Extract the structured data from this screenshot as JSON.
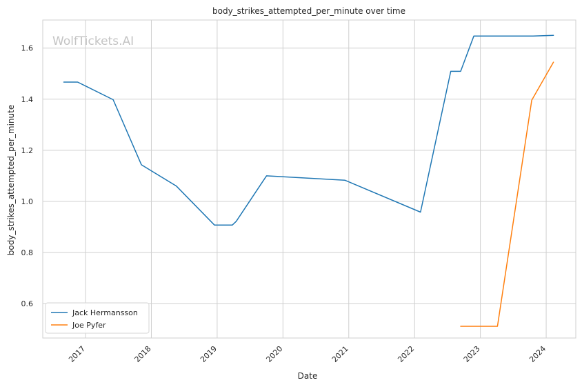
{
  "chart_data": {
    "type": "line",
    "title": "body_strikes_attempted_per_minute over time",
    "xlabel": "Date",
    "ylabel": "body_strikes_attempted_per_minute",
    "watermark": "WolfTickets.AI",
    "xlim": [
      2016.35,
      2024.45
    ],
    "ylim": [
      0.465,
      1.71
    ],
    "x_ticks": [
      2017,
      2018,
      2019,
      2020,
      2021,
      2022,
      2023,
      2024
    ],
    "x_tick_labels": [
      "2017",
      "2018",
      "2019",
      "2020",
      "2021",
      "2022",
      "2023",
      "2024"
    ],
    "y_ticks": [
      0.6,
      0.8,
      1.0,
      1.2,
      1.4,
      1.6
    ],
    "y_tick_labels": [
      "0.6",
      "0.8",
      "1.0",
      "1.2",
      "1.4",
      "1.6"
    ],
    "grid": true,
    "legend_position": "bottom-left",
    "series": [
      {
        "name": "Jack Hermansson",
        "color": "#1f77b4",
        "x": [
          2016.67,
          2016.88,
          2017.42,
          2017.85,
          2018.38,
          2018.96,
          2019.23,
          2019.29,
          2019.75,
          2020.94,
          2022.09,
          2022.55,
          2022.7,
          2022.9,
          2023.8,
          2024.11
        ],
        "y": [
          1.467,
          1.467,
          1.398,
          1.143,
          1.06,
          0.907,
          0.907,
          0.922,
          1.1,
          1.083,
          0.958,
          1.509,
          1.509,
          1.647,
          1.647,
          1.65
        ]
      },
      {
        "name": "Joe Pyfer",
        "color": "#ff7f0e",
        "x": [
          2022.7,
          2023.26,
          2023.78,
          2024.11
        ],
        "y": [
          0.511,
          0.511,
          1.396,
          1.545
        ]
      }
    ]
  }
}
